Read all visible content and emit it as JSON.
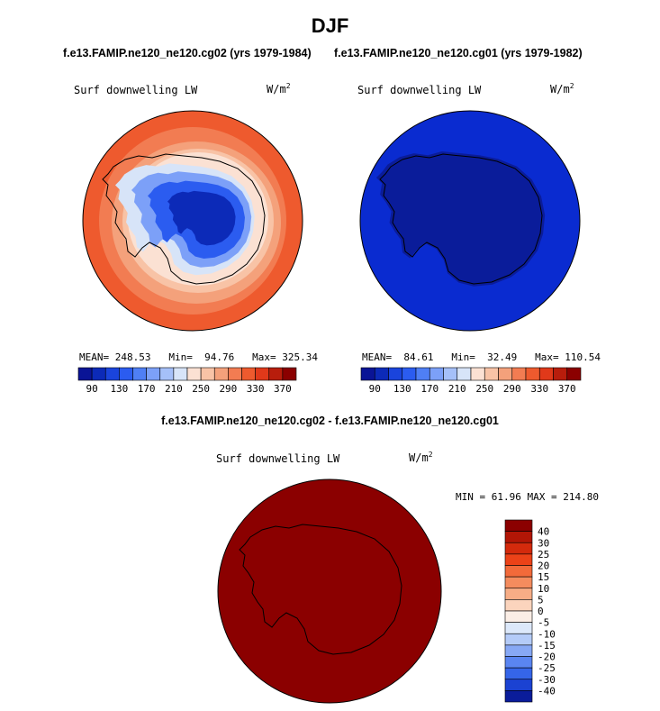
{
  "figure": {
    "title": "DJF",
    "header_left": "f.e13.FAMIP.ne120_ne120.cg02 (yrs 1979-1984)",
    "header_right": "f.e13.FAMIP.ne120_ne120.cg01 (yrs 1979-1982)",
    "diff_header": "f.e13.FAMIP.ne120_ne120.cg02 - f.e13.FAMIP.ne120_ne120.cg01"
  },
  "chart_data": [
    {
      "type": "heatmap",
      "projection": "south-polar-stereographic",
      "variable": "Surf downwelling LW",
      "units_base": "W/m",
      "units_exp": "2",
      "stats": {
        "mean_label": "MEAN=",
        "mean": "248.53",
        "min_label": "Min=",
        "min": "94.76",
        "max_label": "Max=",
        "max": "325.34"
      },
      "colorbar": {
        "orientation": "horizontal",
        "ticks": [
          "90",
          "130",
          "170",
          "210",
          "250",
          "290",
          "330",
          "370"
        ],
        "levels": [
          90,
          110,
          130,
          150,
          170,
          190,
          210,
          230,
          250,
          270,
          290,
          310,
          330,
          350,
          370
        ]
      }
    },
    {
      "type": "heatmap",
      "projection": "south-polar-stereographic",
      "variable": "Surf downwelling LW",
      "units_base": "W/m",
      "units_exp": "2",
      "stats": {
        "mean_label": "MEAN=",
        "mean": "84.61",
        "min_label": "Min=",
        "min": "32.49",
        "max_label": "Max=",
        "max": "110.54"
      },
      "colorbar": {
        "orientation": "horizontal",
        "ticks": [
          "90",
          "130",
          "170",
          "210",
          "250",
          "290",
          "330",
          "370"
        ],
        "levels": [
          90,
          110,
          130,
          150,
          170,
          190,
          210,
          230,
          250,
          270,
          290,
          310,
          330,
          350,
          370
        ]
      }
    },
    {
      "type": "heatmap",
      "projection": "south-polar-stereographic",
      "variable": "Surf downwelling LW",
      "units_base": "W/m",
      "units_exp": "2",
      "stats": {
        "min_label": "MIN =",
        "min": "61.96",
        "max_label": "MAX =",
        "max": "214.80"
      },
      "colorbar": {
        "orientation": "vertical",
        "ticks": [
          "40",
          "30",
          "25",
          "20",
          "15",
          "10",
          "5",
          "0",
          "-5",
          "-10",
          "-15",
          "-20",
          "-25",
          "-30",
          "-40"
        ]
      }
    }
  ],
  "palette": {
    "seq16": [
      "#0a1496",
      "#0c2ab8",
      "#1a44dc",
      "#2b5cf0",
      "#4f7ff5",
      "#7ca0f8",
      "#a5c0f9",
      "#d7e4f8",
      "#fbe1d3",
      "#f8c3a6",
      "#f4a17b",
      "#f27c52",
      "#ee5a2e",
      "#e0391a",
      "#b81d0c",
      "#8b0000"
    ],
    "div16": [
      "#8b0000",
      "#b21606",
      "#d42a0c",
      "#ec4218",
      "#f26a3a",
      "#f48c5e",
      "#f7ad86",
      "#fbd4bd",
      "#fbeee6",
      "#dce8fa",
      "#b4cbf8",
      "#87a8f5",
      "#5a85f1",
      "#3565e8",
      "#1b42d2",
      "#0a1c9a"
    ],
    "land_dark": "#0a1c9a",
    "ocean_blue": "#0a2bd0",
    "diff_fill": "#8b0000"
  }
}
